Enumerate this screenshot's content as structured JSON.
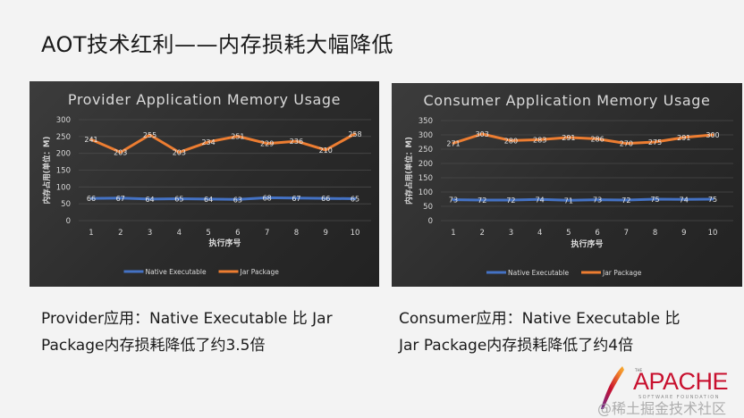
{
  "slide": {
    "title": "AOT技术红利——内存损耗大幅降低",
    "captions": {
      "provider_line1": "Provider应用：Native Executable 比 Jar",
      "provider_line2": "Package内存损耗降低了约3.5倍",
      "consumer_line1": "Consumer应用：Native Executable 比",
      "consumer_line2": "Jar Package内存损耗降低了约4倍"
    },
    "logo": {
      "the": "THE",
      "name": "APACHE",
      "sub": "SOFTWARE FOUNDATION",
      "watermark": "@稀土掘金技术社区"
    }
  },
  "colors": {
    "native": "#4472c4",
    "jar": "#ed7d31",
    "chart_bg": "#2e2e2e",
    "text": "#d9d9d9",
    "grid": "#4a4a4a"
  },
  "chart_data": [
    {
      "type": "line",
      "title": "Provider Application Memory Usage",
      "xlabel": "执行序号",
      "ylabel": "内存占用(单位：M)",
      "x": [
        1,
        2,
        3,
        4,
        5,
        6,
        7,
        8,
        9,
        10
      ],
      "ylim": [
        0,
        300
      ],
      "yticks": [
        0,
        50,
        100,
        150,
        200,
        250,
        300
      ],
      "grid": true,
      "legend_position": "bottom",
      "series": [
        {
          "name": "Native Executable",
          "values": [
            66,
            67,
            64,
            65,
            64,
            63,
            68,
            67,
            66,
            65
          ]
        },
        {
          "name": "Jar Package",
          "values": [
            241,
            203,
            255,
            203,
            234,
            251,
            229,
            236,
            210,
            258
          ]
        }
      ]
    },
    {
      "type": "line",
      "title": "Consumer Application Memory Usage",
      "xlabel": "执行序号",
      "ylabel": "内存占用(单位：M)",
      "x": [
        1,
        2,
        3,
        4,
        5,
        6,
        7,
        8,
        9,
        10
      ],
      "ylim": [
        0,
        350
      ],
      "yticks": [
        0,
        50,
        100,
        150,
        200,
        250,
        300,
        350
      ],
      "grid": true,
      "legend_position": "bottom",
      "series": [
        {
          "name": "Native Executable",
          "values": [
            73,
            72,
            72,
            74,
            71,
            73,
            72,
            75,
            74,
            75
          ]
        },
        {
          "name": "Jar Package",
          "values": [
            271,
            303,
            280,
            283,
            291,
            286,
            270,
            275,
            291,
            300
          ]
        }
      ]
    }
  ]
}
